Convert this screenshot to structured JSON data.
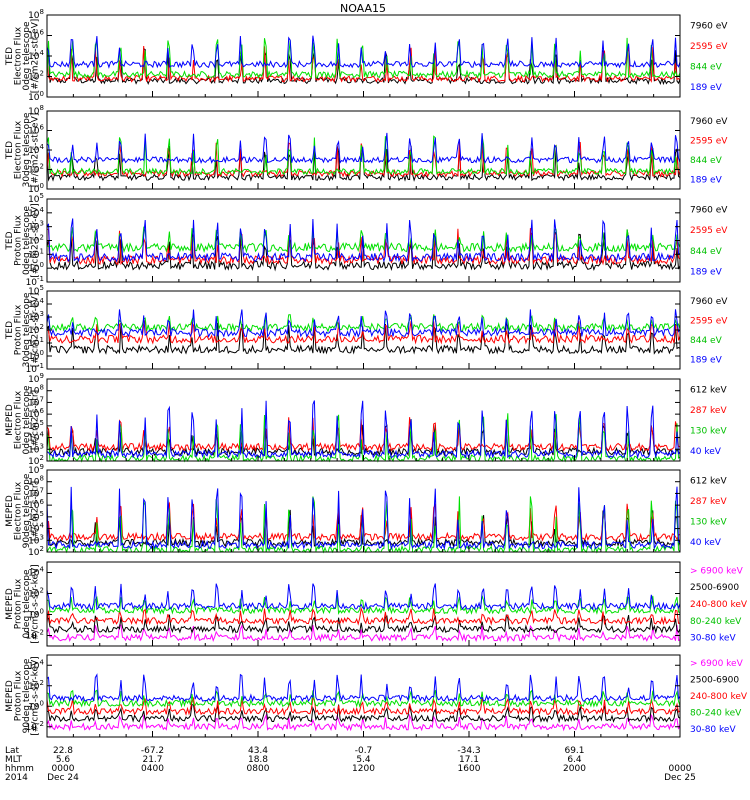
{
  "title": "NOAA15",
  "colors": {
    "black": "#000000",
    "blue": "#0000ff",
    "red": "#ff0000",
    "green": "#00e000",
    "magenta": "#ff00ff"
  },
  "chart_data": [
    {
      "type": "line",
      "panel": "ted-electron-0",
      "ylabel": [
        "TED",
        "Electron Flux",
        "0deg telescope",
        "[#/cm2-s-str-eV]"
      ],
      "yscale": "log",
      "ylim_exp": [
        0,
        8
      ],
      "yticks_exp": [
        0,
        2,
        4,
        6,
        8
      ],
      "series": [
        {
          "name": "7960 eV",
          "color": "black",
          "base_exp": 1.6,
          "peak_exp": 4.8
        },
        {
          "name": "2595 eV",
          "color": "red",
          "base_exp": 1.8,
          "peak_exp": 5.0
        },
        {
          "name": "844 eV",
          "color": "green",
          "base_exp": 2.2,
          "peak_exp": 5.8
        },
        {
          "name": "189 eV",
          "color": "blue",
          "base_exp": 3.2,
          "peak_exp": 6.0
        }
      ]
    },
    {
      "type": "line",
      "panel": "ted-electron-30",
      "ylabel": [
        "TED",
        "Electron Flux",
        "30deg telescope",
        "[#/cm2-s-str-eV]"
      ],
      "yscale": "log",
      "ylim_exp": [
        0,
        8
      ],
      "yticks_exp": [
        0,
        2,
        4,
        6,
        8
      ],
      "series": [
        {
          "name": "7960 eV",
          "color": "black",
          "base_exp": 1.2,
          "peak_exp": 4.5
        },
        {
          "name": "2595 eV",
          "color": "red",
          "base_exp": 1.6,
          "peak_exp": 4.8
        },
        {
          "name": "844 eV",
          "color": "green",
          "base_exp": 1.8,
          "peak_exp": 5.5
        },
        {
          "name": "189 eV",
          "color": "blue",
          "base_exp": 3.0,
          "peak_exp": 5.8
        }
      ]
    },
    {
      "type": "line",
      "panel": "ted-proton-0",
      "ylabel": [
        "TED",
        "Proton Flux",
        "0deg telescope",
        "[#/cm2-s-str-eV]"
      ],
      "yscale": "log",
      "ylim_exp": [
        -1,
        5
      ],
      "yticks_exp": [
        -1,
        0,
        1,
        2,
        3,
        4,
        5
      ],
      "series": [
        {
          "name": "7960 eV",
          "color": "black",
          "base_exp": 0.2,
          "peak_exp": 2.8
        },
        {
          "name": "2595 eV",
          "color": "red",
          "base_exp": 0.6,
          "peak_exp": 2.9
        },
        {
          "name": "844 eV",
          "color": "green",
          "base_exp": 1.5,
          "peak_exp": 3.0
        },
        {
          "name": "189 eV",
          "color": "blue",
          "base_exp": 0.8,
          "peak_exp": 3.6
        }
      ]
    },
    {
      "type": "line",
      "panel": "ted-proton-30",
      "ylabel": [
        "TED",
        "Proton Flux",
        "30deg telescope",
        "[#/cm2-s-str-eV]"
      ],
      "yscale": "log",
      "ylim_exp": [
        -1,
        5
      ],
      "yticks_exp": [
        -1,
        0,
        1,
        2,
        3,
        4,
        5
      ],
      "series": [
        {
          "name": "7960 eV",
          "color": "black",
          "base_exp": 0.5,
          "peak_exp": 2.6
        },
        {
          "name": "2595 eV",
          "color": "red",
          "base_exp": 1.3,
          "peak_exp": 2.8
        },
        {
          "name": "844 eV",
          "color": "green",
          "base_exp": 2.2,
          "peak_exp": 3.2
        },
        {
          "name": "189 eV",
          "color": "blue",
          "base_exp": 1.8,
          "peak_exp": 3.6
        }
      ]
    },
    {
      "type": "line",
      "panel": "meped-electron-0",
      "ylabel": [
        "MEPED",
        "Electron Flux",
        "0deg telescope",
        "[#/cm2-s-str]"
      ],
      "yscale": "log",
      "ylim_exp": [
        2,
        9
      ],
      "yticks_exp": [
        2,
        3,
        4,
        5,
        6,
        7,
        8,
        9
      ],
      "series": [
        {
          "name": "612 keV",
          "color": "black",
          "base_exp": 2.8,
          "peak_exp": 5.2
        },
        {
          "name": "287 keV",
          "color": "red",
          "base_exp": 3.2,
          "peak_exp": 5.8
        },
        {
          "name": "130 keV",
          "color": "green",
          "base_exp": 2.2,
          "peak_exp": 6.2
        },
        {
          "name": "40 keV",
          "color": "blue",
          "base_exp": 2.6,
          "peak_exp": 7.2
        }
      ]
    },
    {
      "type": "line",
      "panel": "meped-electron-90",
      "ylabel": [
        "MEPED",
        "Electron Flux",
        "90deg telescope",
        "[#/cm2-s-str]"
      ],
      "yscale": "log",
      "ylim_exp": [
        2,
        9
      ],
      "yticks_exp": [
        2,
        3,
        4,
        5,
        6,
        7,
        8,
        9
      ],
      "series": [
        {
          "name": "612 keV",
          "color": "black",
          "base_exp": 2.8,
          "peak_exp": 5.6
        },
        {
          "name": "287 keV",
          "color": "red",
          "base_exp": 3.3,
          "peak_exp": 6.2
        },
        {
          "name": "130 keV",
          "color": "green",
          "base_exp": 2.2,
          "peak_exp": 6.8
        },
        {
          "name": "40 keV",
          "color": "blue",
          "base_exp": 2.6,
          "peak_exp": 7.6
        }
      ]
    },
    {
      "type": "line",
      "panel": "meped-proton-0",
      "ylabel": [
        "MEPED",
        "Proton Flux",
        "0deg telescope",
        "[#/cm2-s-str-keV]"
      ],
      "yscale": "log",
      "ylim_exp": [
        -3,
        5
      ],
      "yticks_exp": [
        -2,
        0,
        2,
        4
      ],
      "series": [
        {
          "name": "> 6900 keV",
          "color": "magenta",
          "base_exp": -2.2,
          "peak_exp": -1.0
        },
        {
          "name": "2500-6900",
          "color": "black",
          "base_exp": -1.4,
          "peak_exp": 0.0
        },
        {
          "name": "240-800 keV",
          "color": "red",
          "base_exp": -0.6,
          "peak_exp": 0.6
        },
        {
          "name": "80-240 keV",
          "color": "green",
          "base_exp": 0.4,
          "peak_exp": 1.8
        },
        {
          "name": "30-80 keV",
          "color": "blue",
          "base_exp": 0.8,
          "peak_exp": 3.0
        }
      ]
    },
    {
      "type": "line",
      "panel": "meped-proton-90",
      "ylabel": [
        "MEPED",
        "Proton Flux",
        "90deg telescope",
        "[#/cm2-s-str-keV]"
      ],
      "yscale": "log",
      "ylim_exp": [
        -3,
        5
      ],
      "yticks_exp": [
        -2,
        0,
        2,
        4
      ],
      "series": [
        {
          "name": "> 6900 keV",
          "color": "magenta",
          "base_exp": -2.0,
          "peak_exp": -0.8
        },
        {
          "name": "2500-6900",
          "color": "black",
          "base_exp": -1.2,
          "peak_exp": 0.2
        },
        {
          "name": "240-800 keV",
          "color": "red",
          "base_exp": -0.5,
          "peak_exp": 0.8
        },
        {
          "name": "80-240 keV",
          "color": "green",
          "base_exp": 0.3,
          "peak_exp": 1.6
        },
        {
          "name": "30-80 keV",
          "color": "blue",
          "base_exp": 0.8,
          "peak_exp": 3.2
        }
      ]
    }
  ],
  "ephemeris": {
    "row_labels": [
      "Lat",
      "MLT",
      "hhmm",
      "2014"
    ],
    "columns": [
      {
        "lat": "22.8",
        "mlt": "5.6",
        "hhmm": "0000",
        "date": "Dec 24"
      },
      {
        "lat": "-67.2",
        "mlt": "21.7",
        "hhmm": "0400",
        "date": ""
      },
      {
        "lat": "43.4",
        "mlt": "18.8",
        "hhmm": "0800",
        "date": ""
      },
      {
        "lat": "-0.7",
        "mlt": "5.4",
        "hhmm": "1200",
        "date": ""
      },
      {
        "lat": "-34.3",
        "mlt": "17.1",
        "hhmm": "1600",
        "date": ""
      },
      {
        "lat": "69.1",
        "mlt": "6.4",
        "hhmm": "2000",
        "date": ""
      },
      {
        "lat": "",
        "mlt": "",
        "hhmm": "0000",
        "date": "Dec 25"
      }
    ]
  }
}
